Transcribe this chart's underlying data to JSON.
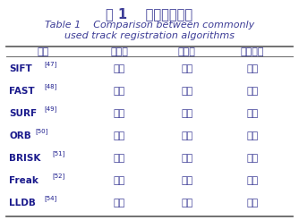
{
  "title_cn": "表 1    常用算法比较",
  "title_en_line1": "Table 1    Comparison between commonly",
  "title_en_line2": "used track registration algorithms",
  "headers": [
    "算法",
    "实时性",
    "鲁棒性",
    "计算效率"
  ],
  "rows": [
    {
      "name": "SIFT",
      "ref": "[47]",
      "cols": [
        "较低",
        "较高",
        "较低"
      ]
    },
    {
      "name": "FAST",
      "ref": "[48]",
      "cols": [
        "较高",
        "较高",
        "较高"
      ]
    },
    {
      "name": "SURF",
      "ref": "[49]",
      "cols": [
        "一般",
        "较高",
        "一般"
      ]
    },
    {
      "name": "ORB",
      "ref": "[50]",
      "cols": [
        "较高",
        "较高",
        "一般"
      ]
    },
    {
      "name": "BRISK",
      "ref": "[51]",
      "cols": [
        "一般",
        "一般",
        "一般"
      ]
    },
    {
      "name": "Freak",
      "ref": "[52]",
      "cols": [
        "一般",
        "较高",
        "较高"
      ]
    },
    {
      "name": "LLDB",
      "ref": "[54]",
      "cols": [
        "较高",
        "较高",
        "较高"
      ]
    }
  ],
  "title_cn_color": "#3c3c96",
  "title_en_color": "#3c3c96",
  "header_color": "#3c3c96",
  "cell_color": "#3c3c96",
  "algo_color": "#1a1a8c",
  "line_color": "#666666",
  "bg_color": "#ffffff",
  "title_cn_fontsize": 10.5,
  "title_en_fontsize": 8.0,
  "header_fontsize": 8.0,
  "cell_fontsize": 8.0,
  "algo_fontsize": 7.5,
  "ref_fontsize": 5.0
}
